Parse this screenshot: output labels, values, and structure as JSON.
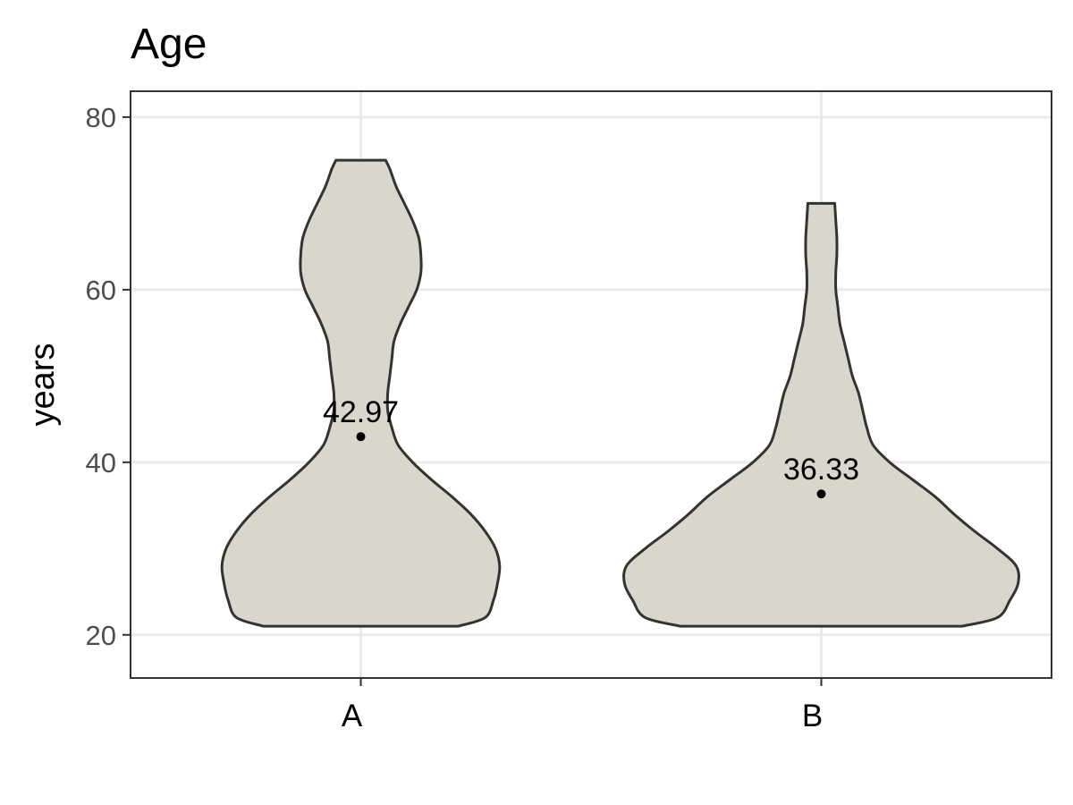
{
  "chart_data": {
    "type": "violin",
    "title": "Age",
    "xlabel": "",
    "ylabel": "years",
    "ylim": [
      15,
      83
    ],
    "yticks": [
      20,
      40,
      60,
      80
    ],
    "grid": true,
    "legend": "none",
    "fill_color": "#d9d7cb",
    "outline_color": "#333333",
    "categories": [
      "A",
      "B"
    ],
    "series": [
      {
        "category": "A",
        "min": 21,
        "max": 75,
        "mean": 42.97,
        "mean_label": "42.97",
        "density_profile": [
          [
            21,
            0.47
          ],
          [
            22,
            0.6
          ],
          [
            24,
            0.64
          ],
          [
            26,
            0.66
          ],
          [
            28,
            0.67
          ],
          [
            30,
            0.65
          ],
          [
            32,
            0.6
          ],
          [
            34,
            0.53
          ],
          [
            36,
            0.44
          ],
          [
            38,
            0.34
          ],
          [
            40,
            0.25
          ],
          [
            42,
            0.18
          ],
          [
            44,
            0.15
          ],
          [
            46,
            0.13
          ],
          [
            48,
            0.13
          ],
          [
            50,
            0.14
          ],
          [
            52,
            0.15
          ],
          [
            54,
            0.16
          ],
          [
            56,
            0.19
          ],
          [
            58,
            0.23
          ],
          [
            60,
            0.27
          ],
          [
            62,
            0.29
          ],
          [
            64,
            0.29
          ],
          [
            66,
            0.28
          ],
          [
            68,
            0.25
          ],
          [
            70,
            0.21
          ],
          [
            72,
            0.17
          ],
          [
            74,
            0.14
          ],
          [
            75,
            0.12
          ]
        ]
      },
      {
        "category": "B",
        "min": 21,
        "max": 70,
        "mean": 36.33,
        "mean_label": "36.33",
        "density_profile": [
          [
            21,
            0.68
          ],
          [
            22,
            0.85
          ],
          [
            24,
            0.91
          ],
          [
            26,
            0.95
          ],
          [
            28,
            0.94
          ],
          [
            30,
            0.85
          ],
          [
            32,
            0.74
          ],
          [
            34,
            0.64
          ],
          [
            36,
            0.55
          ],
          [
            38,
            0.44
          ],
          [
            40,
            0.33
          ],
          [
            42,
            0.25
          ],
          [
            44,
            0.22
          ],
          [
            46,
            0.2
          ],
          [
            48,
            0.18
          ],
          [
            50,
            0.15
          ],
          [
            52,
            0.13
          ],
          [
            54,
            0.11
          ],
          [
            56,
            0.09
          ],
          [
            58,
            0.08
          ],
          [
            60,
            0.07
          ],
          [
            62,
            0.07
          ],
          [
            64,
            0.075
          ],
          [
            66,
            0.075
          ],
          [
            68,
            0.07
          ],
          [
            70,
            0.065
          ]
        ]
      }
    ]
  }
}
